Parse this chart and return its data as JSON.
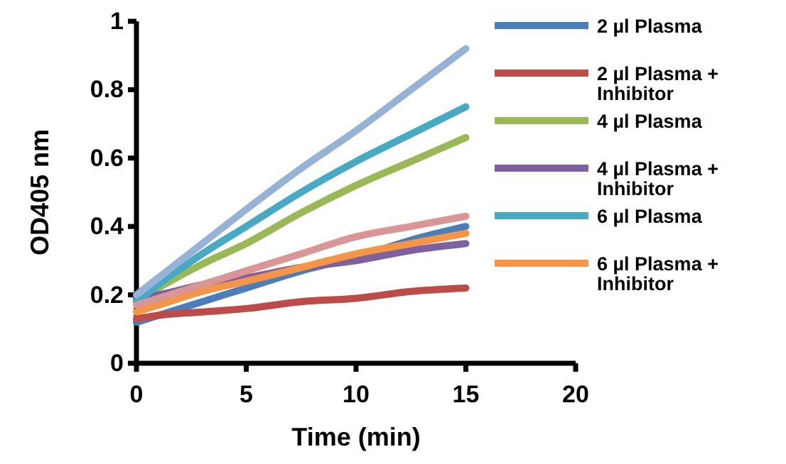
{
  "chart_data": {
    "type": "line",
    "xlabel": "Time (min)",
    "ylabel": "OD405 nm",
    "x": [
      0,
      1,
      3,
      5,
      7.5,
      10,
      12.5,
      15
    ],
    "series": [
      {
        "name": "2 µl Plasma",
        "color": "#4a7ebb",
        "values": [
          0.12,
          0.14,
          0.18,
          0.22,
          0.27,
          0.31,
          0.36,
          0.4
        ]
      },
      {
        "name": "2 µl Plasma + Inhibitor",
        "color": "#be4b48",
        "values": [
          0.13,
          0.14,
          0.15,
          0.16,
          0.18,
          0.19,
          0.21,
          0.22
        ]
      },
      {
        "name": "4 µl Plasma",
        "color": "#98b954",
        "values": [
          0.18,
          0.22,
          0.29,
          0.35,
          0.44,
          0.52,
          0.59,
          0.66
        ]
      },
      {
        "name": "4 µl Plasma + Inhibitor",
        "color": "#7d60a0",
        "values": [
          0.19,
          0.2,
          0.23,
          0.25,
          0.28,
          0.3,
          0.33,
          0.35
        ]
      },
      {
        "name": "6 µl Plasma",
        "color": "#46aac5",
        "values": [
          0.18,
          0.23,
          0.32,
          0.4,
          0.5,
          0.59,
          0.67,
          0.75
        ]
      },
      {
        "name": "6 µl Plasma + Inhibitor",
        "color": "#f69546",
        "values": [
          0.15,
          0.17,
          0.21,
          0.24,
          0.28,
          0.32,
          0.35,
          0.38
        ]
      },
      {
        "color": "#95b3d7",
        "values": [
          0.2,
          0.25,
          0.35,
          0.45,
          0.57,
          0.68,
          0.8,
          0.92
        ]
      },
      {
        "color": "#d99694",
        "values": [
          0.17,
          0.19,
          0.23,
          0.27,
          0.32,
          0.37,
          0.4,
          0.43
        ]
      }
    ],
    "xlim": [
      0,
      20
    ],
    "xticks": [
      0,
      5,
      10,
      15,
      20
    ],
    "ylim": [
      0,
      1
    ],
    "yticks": [
      0,
      0.2,
      0.4,
      0.6,
      0.8,
      1
    ],
    "grid": false,
    "legend": "right",
    "marker": "none",
    "line_style": "solid"
  }
}
